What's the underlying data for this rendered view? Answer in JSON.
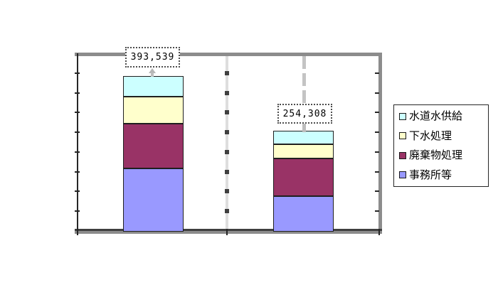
{
  "background_color": "#ffffff",
  "chart_data": {
    "type": "bar",
    "subtype": "stacked-column",
    "categories": [
      "",
      ""
    ],
    "series": [
      {
        "name": "事務所等",
        "color": "#9999FF",
        "values": [
          160000,
          90000
        ]
      },
      {
        "name": "廃棄物処理",
        "color": "#993366",
        "values": [
          112000,
          95000
        ]
      },
      {
        "name": "下水処理",
        "color": "#FFFFCC",
        "values": [
          68000,
          36000
        ]
      },
      {
        "name": "水道水供給",
        "color": "#CCFFFF",
        "values": [
          53539,
          33308
        ]
      }
    ],
    "totals": [
      393539,
      254308
    ],
    "totals_labels": [
      "393,539",
      "254,308"
    ],
    "ylim": [
      0,
      450000
    ],
    "y_major_unit": 50000,
    "y_axis_labels_visible": false,
    "grid": "tick-marks-only",
    "legend_position": "right",
    "legend_items": [
      {
        "label": "水道水供給",
        "color": "#CCFFFF"
      },
      {
        "label": "下水処理",
        "color": "#FFFFCC"
      },
      {
        "label": "廃棄物処理",
        "color": "#993366"
      },
      {
        "label": "事務所等",
        "color": "#9999FF"
      }
    ]
  },
  "colors": {
    "frame_gray": "#8c8c8c",
    "axis_dark": "#262626",
    "divider_light": "#dedede",
    "leader_gray": "#c4c4c4",
    "bar_border": "#1f1f1f",
    "callout_border": "#4d4d4d"
  }
}
